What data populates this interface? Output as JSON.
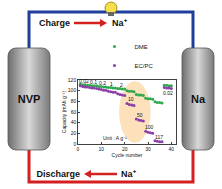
{
  "chart_data": {
    "type": "scatter",
    "x_label": "Cycle number",
    "y_label": "Capacity (mAh g⁻¹)",
    "x": [
      1,
      2,
      3,
      4,
      5,
      6,
      7,
      8,
      9,
      10,
      11,
      12,
      13,
      14,
      15,
      16,
      17,
      18,
      19,
      20,
      21,
      22,
      23,
      24,
      25,
      26,
      27,
      28,
      29,
      30,
      31,
      32,
      33,
      34,
      35,
      36,
      37,
      38,
      39,
      40
    ],
    "series": [
      {
        "name": "DME",
        "color": "#2fa84f",
        "marker": "circle",
        "values": [
          112,
          111,
          111,
          110,
          110,
          109,
          109,
          109,
          108,
          108,
          107,
          107,
          106,
          106,
          105,
          105,
          104,
          104,
          103,
          103,
          100,
          99,
          99,
          98,
          93,
          92,
          92,
          91,
          86,
          85,
          85,
          84,
          79,
          78,
          78,
          77,
          110,
          110,
          109,
          109
        ]
      },
      {
        "name": "EC/PC",
        "color": "#8a3fa8",
        "marker": "circle",
        "values": [
          109,
          108,
          107,
          107,
          106,
          105,
          105,
          104,
          103,
          102,
          101,
          101,
          99,
          98,
          97,
          97,
          94,
          93,
          92,
          91,
          76,
          74,
          73,
          72,
          47,
          45,
          44,
          43,
          24,
          22,
          21,
          20,
          6,
          5,
          4,
          4,
          106,
          105,
          105,
          104
        ]
      }
    ],
    "xlim": [
      0,
      42
    ],
    "xticks": [
      0,
      10,
      20,
      30,
      40
    ],
    "ylim": [
      0,
      120
    ],
    "yticks": [
      0,
      20,
      40,
      60,
      80,
      100,
      120
    ],
    "grid": false,
    "legend": "top",
    "annotations": [
      {
        "text": "0.02",
        "x": 2.5,
        "y": 118
      },
      {
        "text": "0.1",
        "x": 6.5,
        "y": 116
      },
      {
        "text": "0.2",
        "x": 10.5,
        "y": 114
      },
      {
        "text": "1",
        "x": 14.5,
        "y": 112
      },
      {
        "text": "2",
        "x": 18.5,
        "y": 110
      },
      {
        "text": "10",
        "x": 22.5,
        "y": 84
      },
      {
        "text": "50",
        "x": 26.5,
        "y": 55
      },
      {
        "text": "100",
        "x": 30.5,
        "y": 32
      },
      {
        "text": "117",
        "x": 34.5,
        "y": 14
      },
      {
        "text": "0.02",
        "x": 38.5,
        "y": 96
      },
      {
        "text": "Unit : A g⁻¹",
        "x": 16,
        "y": 12
      }
    ]
  },
  "diagram": {
    "top_label": "Charge",
    "bottom_label": "Discharge",
    "ion": "Na⁺",
    "left_electrode": "NVP",
    "right_electrode": "Na"
  }
}
